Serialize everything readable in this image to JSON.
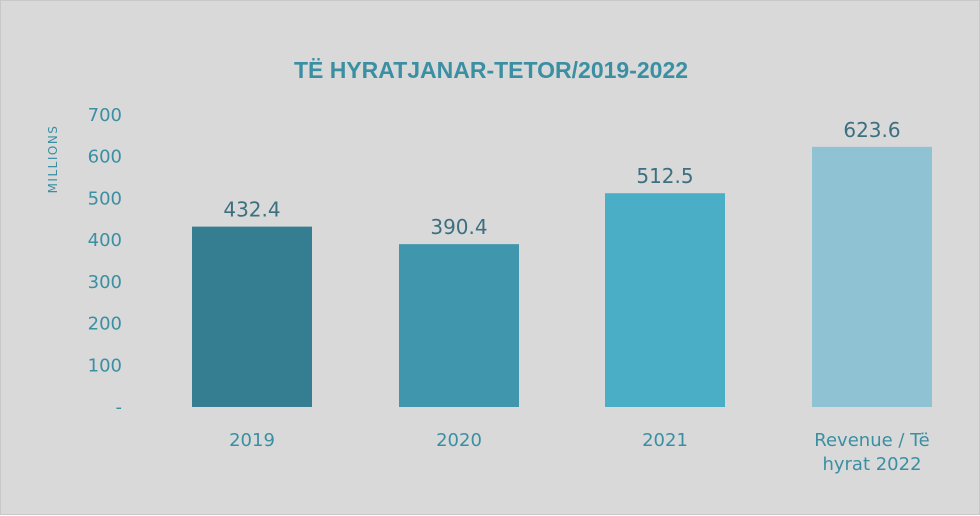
{
  "chart_data": {
    "type": "bar",
    "title": "TË HYRATJANAR-TETOR/2019-2022",
    "ylabel": "MILLIONS",
    "xlabel": "",
    "ylim": [
      0,
      700
    ],
    "yticks": [
      0,
      100,
      200,
      300,
      400,
      500,
      600,
      700
    ],
    "ytick_labels": [
      "-",
      "100",
      "200",
      "300",
      "400",
      "500",
      "600",
      "700"
    ],
    "categories": [
      "2019",
      "2020",
      "2021",
      "Revenue / Të hyrat 2022"
    ],
    "category_lines": [
      [
        "2019"
      ],
      [
        "2020"
      ],
      [
        "2021"
      ],
      [
        "Revenue / Të",
        "hyrat 2022"
      ]
    ],
    "values": [
      432.4,
      390.4,
      512.5,
      623.6
    ],
    "value_labels": [
      "432.4",
      "390.4",
      "512.5",
      "623.6"
    ],
    "colors": [
      "#357d91",
      "#4097ad",
      "#4aaec6",
      "#8fc3d4"
    ],
    "grid": false,
    "legend": "none"
  }
}
